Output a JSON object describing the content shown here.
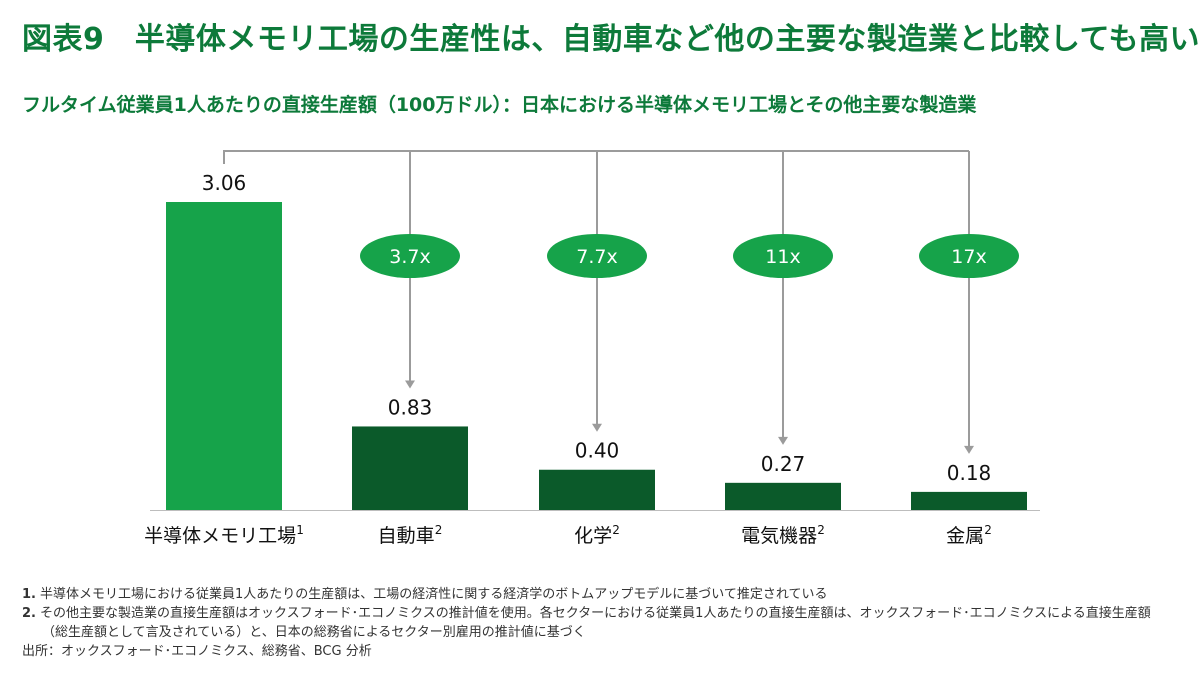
{
  "title": "図表9　半導体メモリ工場の生産性は、自動車など他の主要な製造業と比較しても高い",
  "subtitle": "フルタイム従業員1人あたりの直接生産額（100万ドル）：日本における半導体メモリ工場とその他主要な製造業",
  "colors": {
    "title": "#0d7a3a",
    "highlight_bar": "#16a34a",
    "other_bar": "#0b5a2a",
    "ratio_pill": "#16a34a",
    "connector": "#9b9b9b"
  },
  "chart_data": {
    "type": "bar",
    "categories": [
      "半導体メモリ工場",
      "自動車",
      "化学",
      "電気機器",
      "金属"
    ],
    "category_superscripts": [
      "1",
      "2",
      "2",
      "2",
      "2"
    ],
    "values": [
      3.06,
      0.83,
      0.4,
      0.27,
      0.18
    ],
    "value_labels": [
      "3.06",
      "0.83",
      "0.40",
      "0.27",
      "0.18"
    ],
    "ratios": [
      "",
      "3.7x",
      "7.7x",
      "11x",
      "17x"
    ],
    "highlight_index": 0,
    "ylim": [
      0,
      3.06
    ],
    "grid": false,
    "legend": "none"
  },
  "footnotes": {
    "n1": "1.",
    "t1": "半導体メモリ工場における従業員1人あたりの生産額は、工場の経済性に関する経済学のボトムアップモデルに基づいて推定されている",
    "n2": "2.",
    "t2a": "その他主要な製造業の直接生産額はオックスフォード･エコノミクスの推計値を使用。各セクターにおける従業員1人あたりの直接生産額は、オックスフォード･エコノミクスによる直接生産額",
    "t2b": "（総生産額として言及されている）と、日本の総務省によるセクター別雇用の推計値に基づく",
    "source": "出所：オックスフォード･エコノミクス、総務省、BCG 分析"
  }
}
